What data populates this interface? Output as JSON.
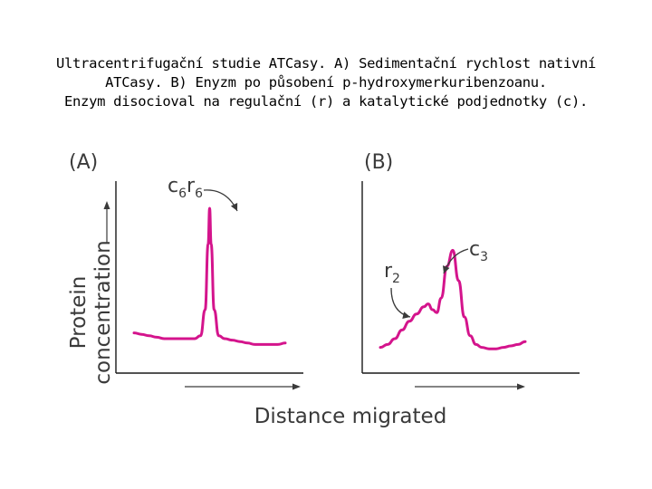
{
  "caption": {
    "line1": "Ultracentrifugační studie ATCasy. A) Sedimentační rychlost nativní",
    "line2": "ATCasy. B) Enyzm po působení p-hydroxymerkuribenzoanu.",
    "line3": "Enzym disocioval na regulační (r) a katalytické podjednotky (c)."
  },
  "colors": {
    "curve": "#d4148c",
    "axis": "#1a1a1a",
    "text": "#3a3a3a"
  },
  "chart_data": {
    "type": "line",
    "ylabel": [
      "Protein",
      "concentration"
    ],
    "xlabel": "Distance migrated",
    "grid": false,
    "panels": [
      {
        "id": "A",
        "label": "(A)",
        "annotations": [
          {
            "base": "c",
            "sub1": "6",
            "mid": "r",
            "sub2": "6",
            "points_to": 0.5
          }
        ],
        "series": [
          {
            "x": [
              0,
              0.05,
              0.1,
              0.15,
              0.2,
              0.25,
              0.3,
              0.35,
              0.4,
              0.44,
              0.47,
              0.49,
              0.5,
              0.51,
              0.53,
              0.56,
              0.6,
              0.65,
              0.7,
              0.75,
              0.8,
              0.85,
              0.9,
              0.95,
              1.0
            ],
            "y": [
              0.14,
              0.13,
              0.12,
              0.11,
              0.1,
              0.1,
              0.1,
              0.1,
              0.1,
              0.12,
              0.3,
              0.75,
              1.0,
              0.75,
              0.3,
              0.12,
              0.1,
              0.09,
              0.08,
              0.07,
              0.06,
              0.06,
              0.06,
              0.06,
              0.07
            ]
          }
        ]
      },
      {
        "id": "B",
        "label": "(B)",
        "annotations": [
          {
            "base": "r",
            "sub1": "2",
            "points_to": 0.33
          },
          {
            "base": "c",
            "sub1": "3",
            "points_to": 0.5
          }
        ],
        "series": [
          {
            "x": [
              0,
              0.05,
              0.1,
              0.15,
              0.2,
              0.25,
              0.3,
              0.33,
              0.36,
              0.39,
              0.42,
              0.46,
              0.5,
              0.54,
              0.58,
              0.62,
              0.66,
              0.7,
              0.75,
              0.8,
              0.85,
              0.9,
              0.95,
              1.0
            ],
            "y": [
              0.04,
              0.06,
              0.1,
              0.16,
              0.22,
              0.27,
              0.32,
              0.34,
              0.3,
              0.28,
              0.38,
              0.6,
              0.71,
              0.5,
              0.25,
              0.12,
              0.06,
              0.04,
              0.03,
              0.03,
              0.04,
              0.05,
              0.06,
              0.08
            ]
          }
        ]
      }
    ]
  }
}
